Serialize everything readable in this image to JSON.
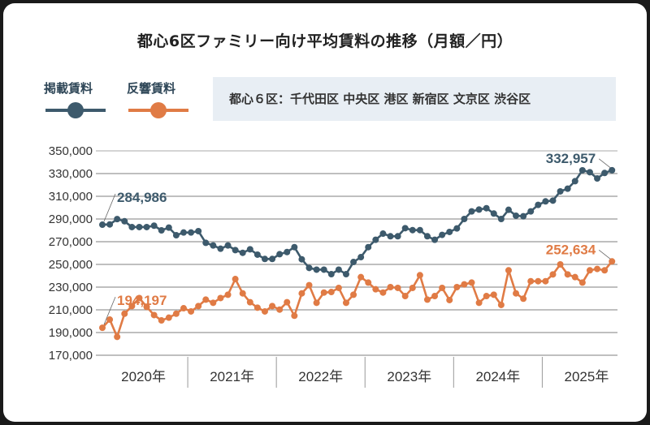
{
  "title": "都心6区ファミリー向け平均賃料の推移（月額／円）",
  "legend": [
    {
      "label": "掲載賃料",
      "color": "#3d5a6c"
    },
    {
      "label": "反響賃料",
      "color": "#e07b45"
    }
  ],
  "note": "都心６区：千代田区 中央区 港区 新宿区 文京区 渋谷区",
  "chart_data": {
    "type": "line",
    "title": "都心6区ファミリー向け平均賃料の推移（月額／円）",
    "x_start": "2020-01",
    "x_end": "2025-10",
    "x_unit": "month",
    "ylim": [
      170000,
      350000
    ],
    "yticks": [
      170000,
      190000,
      210000,
      230000,
      250000,
      270000,
      290000,
      310000,
      330000,
      350000
    ],
    "ytick_labels": [
      "170,000",
      "190,000",
      "210,000",
      "230,000",
      "250,000",
      "270,000",
      "290,000",
      "310,000",
      "330,000",
      "350,000"
    ],
    "year_labels": [
      "2020年",
      "2021年",
      "2022年",
      "2023年",
      "2024年",
      "2025年"
    ],
    "grid": true,
    "legend_placement": "top-left",
    "series": [
      {
        "name": "掲載賃料",
        "color": "#3d5a6c",
        "first_label": "284,986",
        "last_label": "332,957",
        "values": [
          284986,
          285200,
          289900,
          288000,
          282900,
          282900,
          282900,
          284100,
          280000,
          282400,
          275700,
          278100,
          278100,
          279300,
          269000,
          266700,
          263800,
          266700,
          262600,
          260200,
          263300,
          258600,
          254800,
          254800,
          259000,
          260900,
          265200,
          254500,
          246900,
          245400,
          245400,
          241400,
          245400,
          241400,
          252100,
          256400,
          265200,
          271700,
          277100,
          274800,
          274800,
          281900,
          280200,
          280200,
          274800,
          271700,
          276000,
          278600,
          281700,
          290000,
          296700,
          298300,
          299500,
          294800,
          290000,
          298100,
          292900,
          292400,
          296700,
          302400,
          305500,
          306200,
          314300,
          316700,
          323300,
          332900,
          331200,
          325700,
          330500,
          332957
        ]
      },
      {
        "name": "反響賃料",
        "color": "#e07b45",
        "first_label": "194,197",
        "last_label": "252,634",
        "values": [
          194197,
          201400,
          186200,
          206600,
          213300,
          220400,
          212600,
          205400,
          200700,
          203100,
          206600,
          211400,
          208600,
          213300,
          219000,
          216200,
          220400,
          223300,
          237100,
          224500,
          216700,
          211900,
          208600,
          213300,
          210200,
          216700,
          204800,
          224500,
          231700,
          216200,
          225200,
          225700,
          229300,
          216200,
          223300,
          238800,
          234000,
          228100,
          225200,
          230000,
          229300,
          222100,
          229300,
          240500,
          219000,
          222100,
          229300,
          218600,
          230000,
          232400,
          234000,
          216200,
          222100,
          223300,
          214300,
          244800,
          224500,
          219800,
          235200,
          235200,
          235200,
          241200,
          250000,
          241200,
          238800,
          234000,
          244800,
          246000,
          244800,
          252634
        ]
      }
    ]
  }
}
